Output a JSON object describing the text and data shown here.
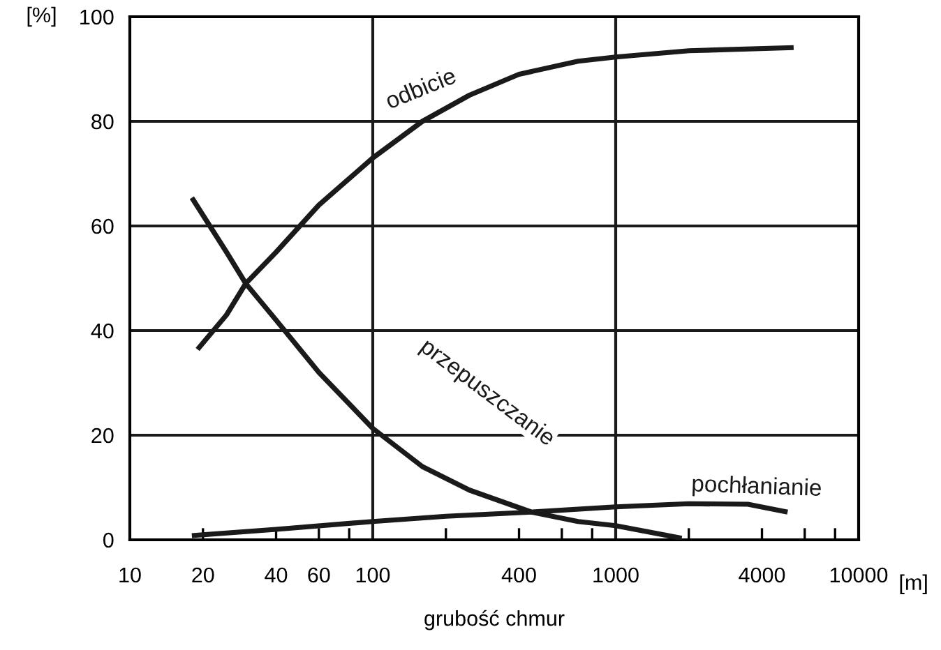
{
  "chart_data": {
    "type": "line",
    "xlabel": "grubość chmur",
    "ylabel": "[%]",
    "annotations": [
      "[m]"
    ],
    "log": "x",
    "xlim": [
      10,
      10000
    ],
    "ylim": [
      0,
      100
    ],
    "xticks": [
      10,
      20,
      40,
      60,
      {
        "value": 80,
        "label": null
      },
      100,
      {
        "value": 200,
        "label": null
      },
      400,
      {
        "value": 600,
        "label": null
      },
      {
        "value": 800,
        "label": null
      },
      1000,
      {
        "value": 2000,
        "label": null
      },
      4000,
      {
        "value": 6000,
        "label": null
      },
      {
        "value": 8000,
        "label": null
      },
      10000
    ],
    "yticks": [
      0,
      20,
      40,
      60,
      80,
      100
    ],
    "grid": "y",
    "ref_lines": [
      {
        "axis": "x",
        "value": 100
      },
      {
        "axis": "x",
        "value": 1000
      }
    ],
    "legend": false,
    "marker": "none",
    "line_style": "solid",
    "series": [
      {
        "name": "odbicie",
        "color": "#1a1a1a",
        "x": [
          19,
          25,
          30,
          40,
          60,
          100,
          160,
          250,
          400,
          700,
          1000,
          2000,
          5400
        ],
        "values": [
          36.4,
          43,
          49,
          55,
          64,
          73,
          80,
          85,
          89,
          91.5,
          92.3,
          93.5,
          94.1
        ]
      },
      {
        "name": "przepuszczanie",
        "color": "#1a1a1a",
        "x": [
          18,
          25,
          30,
          40,
          60,
          100,
          160,
          250,
          450,
          700,
          1000,
          1870
        ],
        "values": [
          65.4,
          55,
          49,
          42,
          32,
          21.3,
          14,
          9.5,
          5.3,
          3.5,
          2.7,
          0.3
        ]
      },
      {
        "name": "pochłanianie",
        "color": "#1a1a1a",
        "x": [
          18,
          40,
          100,
          200,
          450,
          1000,
          2000,
          3500,
          5100
        ],
        "values": [
          0.8,
          2,
          3.5,
          4.5,
          5.3,
          6.3,
          6.9,
          6.8,
          5.3
        ]
      }
    ]
  }
}
